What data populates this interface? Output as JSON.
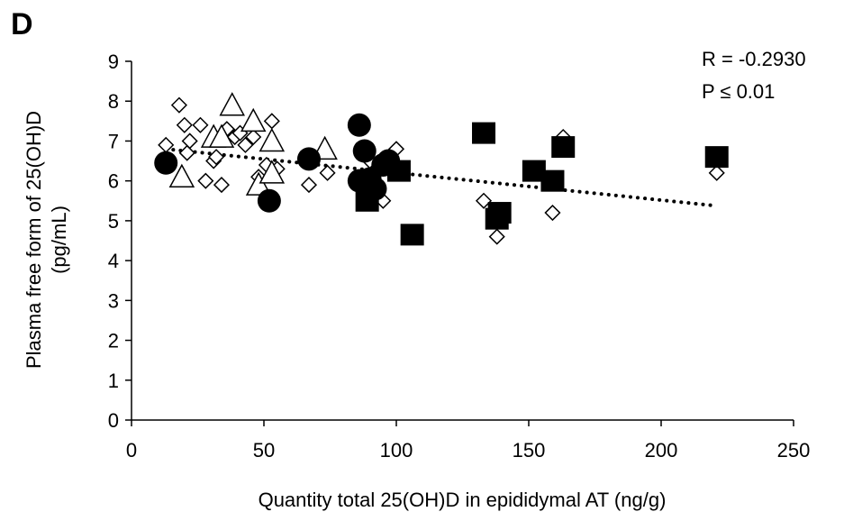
{
  "panel_label": "D",
  "annotations": {
    "r_value": "R = -0.2930",
    "p_value": "P ≤ 0.01"
  },
  "chart_data": {
    "type": "scatter",
    "title": "",
    "xlabel": "Quantity total 25(OH)D in epididymal AT (ng/g)",
    "ylabel_line1": "Plasma free form of 25(OH)D",
    "ylabel_line2": "(pg/mL)",
    "xlim": [
      0,
      250
    ],
    "ylim": [
      0,
      9
    ],
    "x_ticks": [
      0,
      50,
      100,
      150,
      200,
      250
    ],
    "y_ticks": [
      0,
      1,
      2,
      3,
      4,
      5,
      6,
      7,
      8,
      9
    ],
    "grid": false,
    "legend": "none",
    "trendline": {
      "style": "dotted",
      "x": [
        13,
        220
      ],
      "y": [
        6.8,
        5.38
      ]
    },
    "series": [
      {
        "marker": "diamond-open",
        "points": [
          [
            13,
            6.9
          ],
          [
            18,
            7.9
          ],
          [
            20,
            7.4
          ],
          [
            21,
            6.7
          ],
          [
            22,
            7.0
          ],
          [
            26,
            7.4
          ],
          [
            28,
            6.0
          ],
          [
            31,
            6.5
          ],
          [
            32,
            6.6
          ],
          [
            34,
            5.9
          ],
          [
            36,
            7.3
          ],
          [
            39,
            7.1
          ],
          [
            41,
            7.2
          ],
          [
            43,
            6.9
          ],
          [
            46,
            7.1
          ],
          [
            48,
            6.1
          ],
          [
            51,
            6.4
          ],
          [
            53,
            7.5
          ],
          [
            55,
            6.3
          ],
          [
            67,
            5.9
          ],
          [
            74,
            6.2
          ],
          [
            87,
            6.7
          ],
          [
            90,
            6.5
          ],
          [
            93,
            6.3
          ],
          [
            95,
            5.5
          ],
          [
            100,
            6.8
          ],
          [
            133,
            5.5
          ],
          [
            138,
            4.6
          ],
          [
            159,
            5.2
          ],
          [
            163,
            7.1
          ],
          [
            221,
            6.2
          ]
        ]
      },
      {
        "marker": "triangle-open",
        "points": [
          [
            19,
            6.1
          ],
          [
            31,
            7.1
          ],
          [
            34,
            7.1
          ],
          [
            38,
            7.9
          ],
          [
            46,
            7.5
          ],
          [
            48,
            5.9
          ],
          [
            53,
            7.0
          ],
          [
            53,
            6.2
          ],
          [
            73,
            6.8
          ]
        ]
      },
      {
        "marker": "circle-filled",
        "points": [
          [
            13,
            6.45
          ],
          [
            52,
            5.5
          ],
          [
            67,
            6.55
          ],
          [
            86,
            7.4
          ],
          [
            86,
            6.0
          ],
          [
            88,
            6.75
          ],
          [
            90,
            6.05
          ],
          [
            92,
            5.8
          ],
          [
            95,
            6.4
          ],
          [
            97,
            6.5
          ]
        ]
      },
      {
        "marker": "square-filled",
        "points": [
          [
            89,
            5.5
          ],
          [
            101,
            6.25
          ],
          [
            106,
            4.65
          ],
          [
            133,
            7.2
          ],
          [
            138,
            5.05
          ],
          [
            139,
            5.2
          ],
          [
            152,
            6.25
          ],
          [
            159,
            6.0
          ],
          [
            163,
            6.85
          ],
          [
            221,
            6.6
          ]
        ]
      }
    ]
  }
}
